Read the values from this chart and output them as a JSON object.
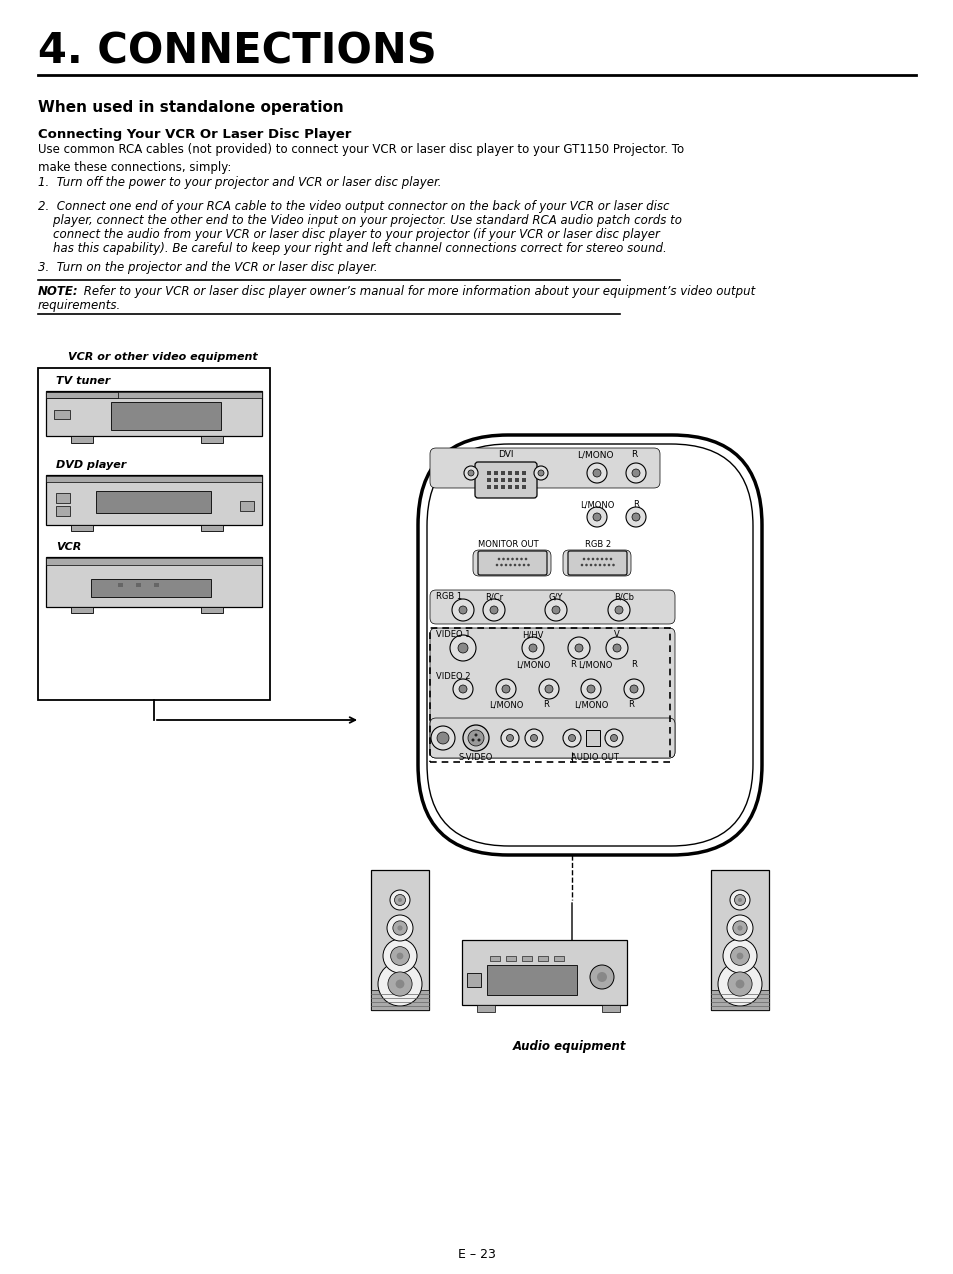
{
  "title": "4. CONNECTIONS",
  "section_title": "When used in standalone operation",
  "subsection_title": "Connecting Your VCR Or Laser Disc Player",
  "intro_text": "Use common RCA cables (not provided) to connect your VCR or laser disc player to your GT1150 Projector. To\nmake these connections, simply:",
  "step1": "1.  Turn off the power to your projector and VCR or laser disc player.",
  "step2_line1": "2.  Connect one end of your RCA cable to the video output connector on the back of your VCR or laser disc",
  "step2_line2": "    player, connect the other end to the Video input on your projector. Use standard RCA audio patch cords to",
  "step2_line3": "    connect the audio from your VCR or laser disc player to your projector (if your VCR or laser disc player",
  "step2_line4": "    has this capability). Be careful to keep your right and left channel connections correct for stereo sound.",
  "step3": "3.  Turn on the projector and the VCR or laser disc player.",
  "note_bold": "NOTE:",
  "note_rest_line1": " Refer to your VCR or laser disc player owner’s manual for more information about your equipment’s video output",
  "note_rest_line2": "requirements.",
  "vcr_label": "VCR or other video equipment",
  "tv_label": "TV tuner",
  "dvd_label": "DVD player",
  "vcr_device_label": "VCR",
  "audio_label": "Audio equipment",
  "page_number": "E – 23",
  "bg_color": "#ffffff",
  "text_color": "#000000",
  "line_color": "#000000",
  "gray_light": "#d0d0d0",
  "gray_mid": "#aaaaaa",
  "gray_dark": "#888888",
  "gray_darker": "#666666",
  "connector_fill": "#cccccc",
  "panel_fill": "#d8d8d8"
}
